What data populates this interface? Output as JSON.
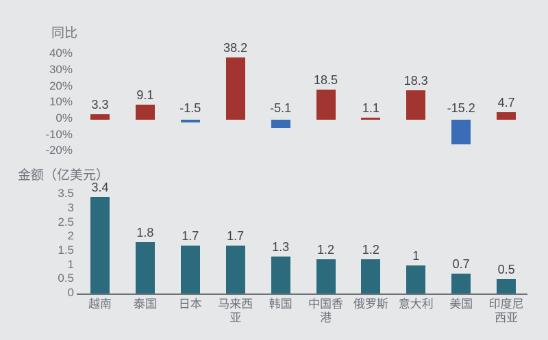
{
  "background": "#E5E7E9",
  "colors": {
    "yoy_positive": "#A33530",
    "yoy_negative": "#3A6DB5",
    "amount_bar": "#2B6B7D",
    "axis_text": "#6E737B",
    "value_text": "#3F4347",
    "axis_line": "#6F747A"
  },
  "chart_data": [
    {
      "type": "bar",
      "id": "yoy",
      "title": "同比",
      "categories": [
        "越南",
        "泰国",
        "日本",
        "马来西亚",
        "韩国",
        "中国香港",
        "俄罗斯",
        "意大利",
        "美国",
        "印度尼西亚"
      ],
      "values": [
        3.3,
        9.1,
        -1.5,
        38.2,
        -5.1,
        18.5,
        1.1,
        18.3,
        -15.2,
        4.7
      ],
      "yticks": [
        "40%",
        "30%",
        "20%",
        "10%",
        "0%",
        "-10%",
        "-20%"
      ],
      "ytick_values": [
        40,
        30,
        20,
        10,
        0,
        -10,
        -20
      ],
      "ylim": [
        -25,
        45
      ],
      "xlabel": "",
      "ylabel": "同比",
      "grid": false,
      "legend": "none",
      "category_labels_shown": false
    },
    {
      "type": "bar",
      "id": "amount",
      "title": "金额（亿美元）",
      "categories": [
        "越南",
        "泰国",
        "日本",
        "马来西亚",
        "韩国",
        "中国香港",
        "俄罗斯",
        "意大利",
        "美国",
        "印度尼西亚"
      ],
      "values": [
        3.4,
        1.8,
        1.7,
        1.7,
        1.3,
        1.2,
        1.2,
        1,
        0.7,
        0.5
      ],
      "yticks": [
        "3.5",
        "3",
        "2.5",
        "2",
        "1.5",
        "1",
        "0.5",
        "0"
      ],
      "ytick_values": [
        3.5,
        3,
        2.5,
        2,
        1.5,
        1,
        0.5,
        0
      ],
      "ylim": [
        0,
        3.5
      ],
      "xlabel": "",
      "ylabel": "金额（亿美元）",
      "grid": false,
      "legend": "none",
      "category_labels_shown": true
    }
  ]
}
